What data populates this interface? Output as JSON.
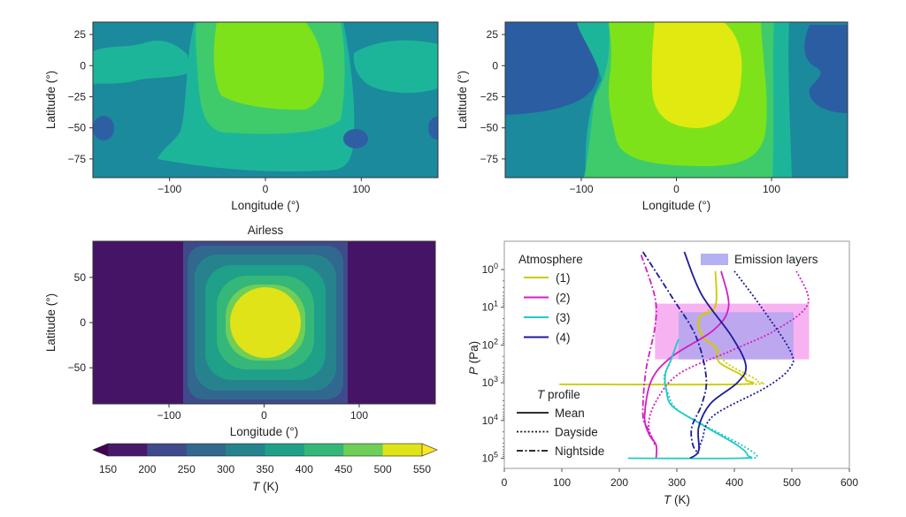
{
  "chart_data": [
    {
      "type": "heatmap",
      "title": "",
      "xlabel": "Longitude (°)",
      "ylabel": "Latitude (°)",
      "xticks": [
        -100,
        0,
        100
      ],
      "yticks": [
        25,
        0,
        -25,
        -50,
        -75
      ],
      "xlim": [
        -180,
        180
      ],
      "ylim": [
        -90,
        35
      ],
      "colors": {
        "250-300": "#2f5fa3",
        "300-350": "#1b8a9c",
        "350-400": "#1db59a",
        "400-450": "#3fcb6b",
        "450-500": "#7ee21b"
      }
    },
    {
      "type": "heatmap",
      "title": "",
      "xlabel": "Longitude (°)",
      "ylabel": "Latitude (°)",
      "xticks": [
        -100,
        0,
        100
      ],
      "yticks": [
        25,
        0,
        -25,
        -50,
        -75
      ],
      "xlim": [
        -180,
        180
      ],
      "ylim": [
        -90,
        35
      ],
      "colors": {
        "250-300": "#2b5da3",
        "300-350": "#1b8a9c",
        "350-400": "#1db59a",
        "400-450": "#3fcb6b",
        "450-500": "#7ee21b",
        "500-550": "#e0ea10"
      }
    },
    {
      "type": "heatmap",
      "title": "Airless",
      "xlabel": "Longitude (°)",
      "ylabel": "Latitude (°)",
      "xticks": [
        -100,
        0,
        100
      ],
      "yticks": [
        50,
        0,
        -50
      ],
      "xlim": [
        -180,
        180
      ],
      "ylim": [
        -90,
        90
      ],
      "colorbar": {
        "label": "T (K)",
        "ticks": [
          150,
          200,
          250,
          300,
          350,
          400,
          450,
          500,
          550
        ],
        "colors": [
          "#48196b",
          "#3f4a8a",
          "#31688e",
          "#26838e",
          "#1fa088",
          "#35b779",
          "#6ece58",
          "#dfe318"
        ],
        "extend": "both"
      }
    },
    {
      "type": "line",
      "title": "",
      "xlabel": "T (K)",
      "ylabel": "P (Pa)",
      "xlim": [
        0,
        600
      ],
      "xticks": [
        0,
        100,
        200,
        300,
        400,
        500,
        600
      ],
      "ylim": [
        100000,
        0.25
      ],
      "yscale": "log",
      "yticks": [
        1,
        10,
        100,
        1000,
        10000,
        100000
      ],
      "ytick_base": "10",
      "ytick_exponents": [
        "0",
        "1",
        "2",
        "3",
        "4",
        "5"
      ],
      "legend": {
        "atmosphere_title": "Atmosphere",
        "atmospheres": [
          {
            "label": "(1)",
            "color": "#cccc00"
          },
          {
            "label": "(2)",
            "color": "#d21fc4"
          },
          {
            "label": "(3)",
            "color": "#22c9c9"
          },
          {
            "label": "(4)",
            "color": "#1c1c99"
          }
        ],
        "profile_title_italic": "T",
        "profile_title_rest": " profile",
        "profiles": [
          {
            "label": "Mean",
            "style": "solid"
          },
          {
            "label": "Dayside",
            "style": "dotted"
          },
          {
            "label": "Nightside",
            "style": "dashdot"
          }
        ],
        "emission_label": "Emission layers",
        "emission_color": "#b3b0f4"
      },
      "emission_layers": [
        {
          "atmosphere": "(2)",
          "T": [
            262,
            530
          ],
          "P": [
            8,
            240
          ],
          "color": "#f6a6ee"
        },
        {
          "atmosphere": "(4)",
          "T": [
            303,
            503
          ],
          "P": [
            13.5,
            240
          ],
          "color": "#b3a6f0"
        }
      ],
      "series": [
        {
          "atmosphere": "(1)",
          "profile": "Mean",
          "points": [
            [
              367,
              1.1
            ],
            [
              367,
              9.5
            ],
            [
              338,
              19
            ],
            [
              344,
              58
            ],
            [
              367,
              120
            ],
            [
              374,
              290
            ],
            [
              410,
              590
            ],
            [
              420,
              850
            ],
            [
              405,
              1100
            ],
            [
              97,
              1100
            ]
          ]
        },
        {
          "atmosphere": "(1)",
          "profile": "Dayside",
          "points": [
            [
              367,
              9.5
            ],
            [
              340,
              19
            ],
            [
              346,
              58
            ],
            [
              370,
              120
            ],
            [
              385,
              290
            ],
            [
              430,
              700
            ],
            [
              441,
              930
            ],
            [
              420,
              1100
            ],
            [
              95,
              1100
            ]
          ]
        },
        {
          "atmosphere": "(2)",
          "profile": "Mean",
          "points": [
            [
              377,
              1.1
            ],
            [
              390,
              9.5
            ],
            [
              364,
              40
            ],
            [
              292,
              200
            ],
            [
              256,
              850
            ],
            [
              244,
              7400
            ],
            [
              251,
              22000
            ],
            [
              264,
              45000
            ],
            [
              264,
              100000
            ]
          ]
        },
        {
          "atmosphere": "(2)",
          "profile": "Dayside",
          "points": [
            [
              508,
              1.1
            ],
            [
              528,
              8
            ],
            [
              472,
              40
            ],
            [
              395,
              140
            ],
            [
              303,
              590
            ],
            [
              262,
              3500
            ],
            [
              251,
              15000
            ],
            [
              264,
              45000
            ]
          ]
        },
        {
          "atmosphere": "(2)",
          "profile": "Nightside",
          "points": [
            [
              238,
              0.41
            ],
            [
              262,
              5.5
            ],
            [
              262,
              33
            ],
            [
              246,
              500
            ],
            [
              241,
              7400
            ],
            [
              251,
              18000
            ],
            [
              262,
              45000
            ]
          ]
        },
        {
          "atmosphere": "(3)",
          "profile": "Mean",
          "points": [
            [
              303,
              69
            ],
            [
              290,
              240
            ],
            [
              280,
              590
            ],
            [
              282,
              1700
            ],
            [
              293,
              4300
            ],
            [
              344,
              13000
            ],
            [
              405,
              45000
            ],
            [
              423,
              83000
            ],
            [
              410,
              100000
            ],
            [
              215,
              100000
            ]
          ]
        },
        {
          "atmosphere": "(3)",
          "profile": "Dayside",
          "points": [
            [
              300,
              90
            ],
            [
              288,
              300
            ],
            [
              278,
              700
            ],
            [
              285,
              2000
            ],
            [
              300,
              5000
            ],
            [
              350,
              14000
            ],
            [
              415,
              47000
            ],
            [
              440,
              90000
            ],
            [
              420,
              100000
            ]
          ]
        },
        {
          "atmosphere": "(4)",
          "profile": "Mean",
          "points": [
            [
              313,
              0.34
            ],
            [
              343,
              4.6
            ],
            [
              395,
              58
            ],
            [
              420,
              350
            ],
            [
              405,
              1000
            ],
            [
              359,
              3500
            ],
            [
              338,
              15000
            ],
            [
              338,
              63000
            ],
            [
              323,
              100000
            ]
          ]
        },
        {
          "atmosphere": "(4)",
          "profile": "Dayside",
          "points": [
            [
              400,
              1.1
            ],
            [
              446,
              9.5
            ],
            [
              497,
              140
            ],
            [
              497,
              400
            ],
            [
              456,
              1300
            ],
            [
              364,
              7400
            ],
            [
              344,
              32000
            ],
            [
              338,
              63000
            ]
          ]
        },
        {
          "atmosphere": "(4)",
          "profile": "Nightside",
          "points": [
            [
              241,
              0.34
            ],
            [
              292,
              5.5
            ],
            [
              333,
              58
            ],
            [
              351,
              710
            ],
            [
              344,
              3500
            ],
            [
              326,
              15000
            ],
            [
              328,
              45000
            ],
            [
              338,
              76000
            ]
          ]
        }
      ]
    }
  ]
}
